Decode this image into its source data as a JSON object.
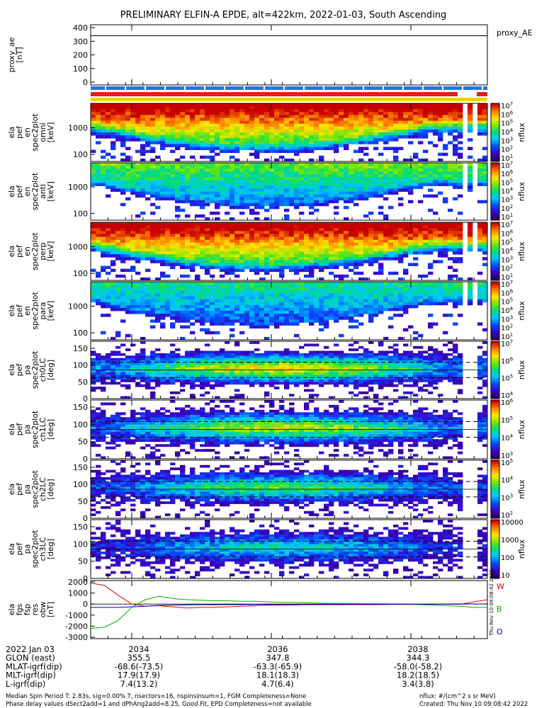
{
  "title": "PRELIMINARY ELFIN-A EPDE, alt=422km, 2022-01-03, South Ascending",
  "x_ticks": [
    "2034",
    "2036",
    "2038"
  ],
  "panels": [
    {
      "id": "proxy_ae",
      "ylabel": [
        "proxy_ae",
        "[nT]"
      ],
      "yticks": [
        "400",
        "300",
        "200",
        "100",
        "0"
      ],
      "legend": "proxy_AE"
    },
    {
      "id": "omni",
      "ylabel": [
        "ela",
        "pef",
        "en",
        "spec2plot",
        "omni",
        "[keV]"
      ],
      "yticks": [
        "1000",
        "100"
      ],
      "cb_ticks": [
        "10^7",
        "10^6",
        "10^5",
        "10^4",
        "10^3",
        "10^2",
        "10^1"
      ],
      "cb_label": "nflux"
    },
    {
      "id": "anti",
      "ylabel": [
        "ela",
        "pef",
        "en",
        "spec2plot",
        "anti",
        "[keV]"
      ],
      "yticks": [
        "1000",
        "100"
      ],
      "cb_ticks": [
        "10^7",
        "10^6",
        "10^5",
        "10^4",
        "10^3",
        "10^2",
        "10^1"
      ],
      "cb_label": "nflux"
    },
    {
      "id": "perp",
      "ylabel": [
        "ela",
        "pef",
        "en",
        "spec2plot",
        "perp",
        "[keV]"
      ],
      "yticks": [
        "1000",
        "100"
      ],
      "cb_ticks": [
        "10^7",
        "10^6",
        "10^5",
        "10^4",
        "10^3",
        "10^2",
        "10^1"
      ],
      "cb_label": "nflux"
    },
    {
      "id": "para",
      "ylabel": [
        "ela",
        "pef",
        "en",
        "spec2plot",
        "para",
        "[keV]"
      ],
      "yticks": [
        "1000",
        "100"
      ],
      "cb_ticks": [
        "10^7",
        "10^6",
        "10^5",
        "10^4",
        "10^3",
        "10^2",
        "10^1"
      ],
      "cb_label": "nflux"
    },
    {
      "id": "ch0LC",
      "ylabel": [
        "ela",
        "pef",
        "pa",
        "spec2plot",
        "ch0LC",
        "[deg]"
      ],
      "yticks": [
        "150",
        "100",
        "50",
        "0"
      ],
      "cb_ticks": [
        "10^7",
        "10^6",
        "10^5",
        "10^4"
      ],
      "cb_label": "nflux"
    },
    {
      "id": "ch1LC",
      "ylabel": [
        "ela",
        "pef",
        "pa",
        "spec2plot",
        "ch1LC",
        "[deg]"
      ],
      "yticks": [
        "150",
        "100",
        "50",
        "0"
      ],
      "cb_ticks": [
        "10^6",
        "10^5",
        "10^4",
        "10^3"
      ],
      "cb_label": "nflux"
    },
    {
      "id": "ch2LC",
      "ylabel": [
        "ela",
        "pef",
        "pa",
        "spec2plot",
        "ch2LC",
        "[deg]"
      ],
      "yticks": [
        "150",
        "100",
        "50",
        "0"
      ],
      "cb_ticks": [
        "10^5",
        "10^4",
        "10^3",
        "10^2"
      ],
      "cb_label": "nflux"
    },
    {
      "id": "ch3LC",
      "ylabel": [
        "ela",
        "pef",
        "pa",
        "spec2plot",
        "ch3LC",
        "[deg]"
      ],
      "yticks": [
        "150",
        "100",
        "50",
        "0"
      ],
      "cb_ticks": [
        "10000",
        "1000",
        "100",
        "10"
      ],
      "cb_label": "nflux"
    },
    {
      "id": "fgs",
      "ylabel": [
        "ela",
        "fgs",
        "fsp",
        "res",
        "obw",
        "[nT]"
      ],
      "yticks": [
        "2000",
        "1000",
        "0",
        "-1000",
        "-2000",
        "-3000"
      ],
      "legend": [
        "W",
        "B",
        "O"
      ]
    }
  ],
  "info_rows": [
    [
      "2022 Jan 03",
      "2034",
      "2036",
      "2038"
    ],
    [
      "GLON (east)",
      "355.5",
      "347.8",
      "344.3"
    ],
    [
      "MLAT-igrf(dip)",
      "-68.6(-73.5)",
      "-63.3(-65.9)",
      "-58.0(-58.2)"
    ],
    [
      "MLT-igrf(dip)",
      "17.9(17.9)",
      "18.1(18.3)",
      "18.2(18.5)"
    ],
    [
      "L-igrf(dip)",
      "7.4(13.2)",
      "4.7(6.4)",
      "3.4(3.8)"
    ]
  ],
  "footer_left": [
    "Median Spin Period T: 2.83s, sig=0.00% T, nsectors=16, nspinsinsum=1, FGM Completeness=None",
    "Phase delay values dSect2add=1 and dPhAng2add=8.25, Good Fit, EPD Completeness=not available"
  ],
  "footer_right": [
    "nflux: #/(cm^2 s sr MeV)",
    "Created: Thu Nov 10 09:08:42 2022"
  ],
  "side_stamp": "Thu Nov 10 09:08:42 2022",
  "colors": {
    "w": "#e00000",
    "b": "#00b000",
    "o": "#0000d0",
    "blue_bar": "#1e78e0",
    "red_bar": "#e02020",
    "yellow_bar": "#f0d000"
  },
  "chart_data": {
    "type": "heatmap",
    "title": "PRELIMINARY ELFIN-A EPDE, alt=422km, 2022-01-03, South Ascending",
    "x_ticks": [
      "2034",
      "2036",
      "2038"
    ],
    "proxy_ae": {
      "ylim": [
        0,
        400
      ],
      "value": 340
    },
    "fgs": {
      "ylim": [
        -3000,
        2000
      ],
      "series": [
        {
          "name": "W",
          "values": [
            1900,
            1700,
            800,
            0,
            -200,
            -150,
            -250,
            -350,
            -300,
            -300,
            -250,
            -200,
            -150,
            -100,
            -100,
            -80,
            -60,
            -60,
            -60,
            -50,
            -50,
            -50,
            -40,
            -40,
            -30,
            -20,
            -20,
            -20,
            200,
            400
          ]
        },
        {
          "name": "B",
          "values": [
            -2200,
            -2100,
            -1500,
            -300,
            400,
            700,
            500,
            400,
            350,
            300,
            300,
            250,
            250,
            200,
            150,
            150,
            100,
            80,
            60,
            50,
            40,
            30,
            20,
            0,
            -50,
            -100,
            -150,
            -200,
            -300,
            -300
          ]
        },
        {
          "name": "O",
          "values": [
            -300,
            -300,
            -300,
            -250,
            -200,
            -120,
            -100,
            -80,
            -60,
            -60,
            -50,
            -50,
            -40,
            -40,
            -40,
            -30,
            -30,
            -20,
            -20,
            -20,
            -20,
            -10,
            -10,
            0,
            0,
            0,
            0,
            10,
            10,
            10
          ]
        }
      ]
    }
  }
}
